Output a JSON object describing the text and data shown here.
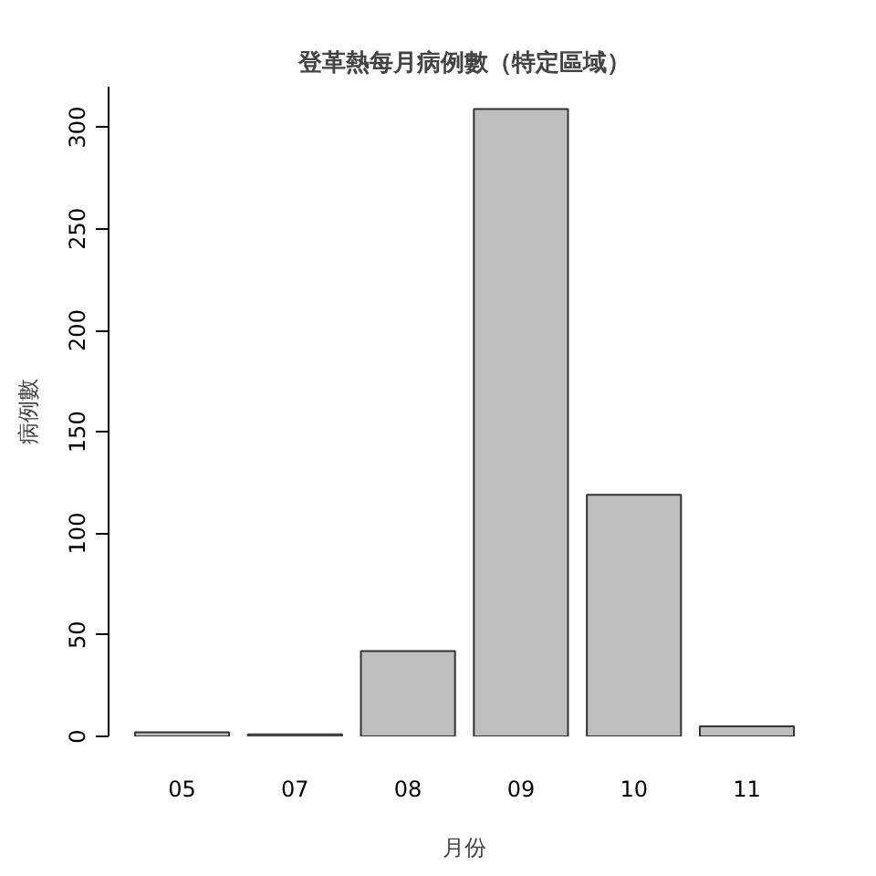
{
  "chart_data": {
    "type": "bar",
    "title": "登革熱每月病例數（特定區域）",
    "xlabel": "月份",
    "ylabel": "病例數",
    "categories": [
      "05",
      "07",
      "08",
      "09",
      "10",
      "11"
    ],
    "values": [
      2,
      1,
      42,
      309,
      119,
      5
    ],
    "color": "#bebebe",
    "ylim": [
      0,
      320
    ],
    "yticks": [
      0,
      50,
      100,
      150,
      200,
      250,
      300
    ],
    "grid": false
  }
}
